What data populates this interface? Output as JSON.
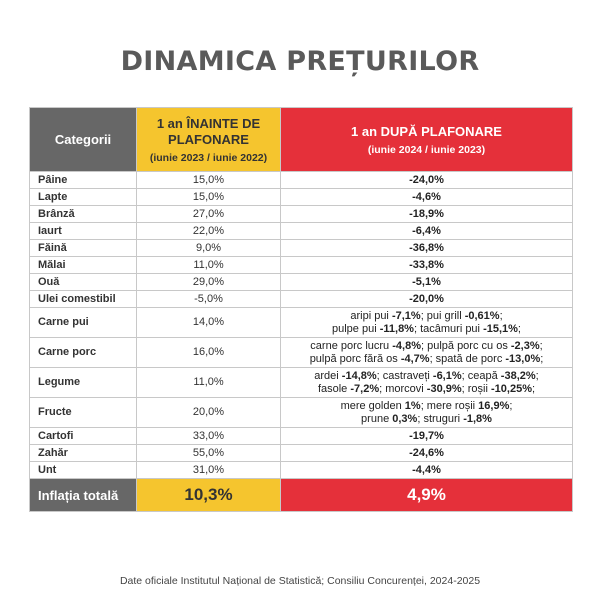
{
  "title": "DINAMICA PREȚURILOR",
  "header": {
    "category": "Categorii",
    "before_title": "1 an ÎNAINTE DE PLAFONARE",
    "before_period": "(iunie 2023 / iunie 2022)",
    "after_title": "1 an DUPĂ PLAFONARE",
    "after_period": "(iunie 2024 / iunie 2023)"
  },
  "rows": [
    {
      "category": "Pâine",
      "before": "15,0%",
      "after": [
        {
          "t": "-24,0%",
          "b": true
        }
      ]
    },
    {
      "category": "Lapte",
      "before": "15,0%",
      "after": [
        {
          "t": "-4,6%",
          "b": true
        }
      ]
    },
    {
      "category": "Brânză",
      "before": "27,0%",
      "after": [
        {
          "t": "-18,9%",
          "b": true
        }
      ]
    },
    {
      "category": "Iaurt",
      "before": "22,0%",
      "after": [
        {
          "t": "-6,4%",
          "b": true
        }
      ]
    },
    {
      "category": "Făină",
      "before": "9,0%",
      "after": [
        {
          "t": "-36,8%",
          "b": true
        }
      ]
    },
    {
      "category": "Mălai",
      "before": "11,0%",
      "after": [
        {
          "t": "-33,8%",
          "b": true
        }
      ]
    },
    {
      "category": "Ouă",
      "before": "29,0%",
      "after": [
        {
          "t": "-5,1%",
          "b": true
        }
      ]
    },
    {
      "category": "Ulei comestibil",
      "before": "-5,0%",
      "after": [
        {
          "t": "-20,0%",
          "b": true
        }
      ]
    },
    {
      "category": "Carne pui",
      "before": "14,0%",
      "after": [
        {
          "t": "aripi pui ",
          "b": false
        },
        {
          "t": "-7,1%",
          "b": true
        },
        {
          "t": "; pui grill ",
          "b": false
        },
        {
          "t": "-0,61%",
          "b": true
        },
        {
          "t": ";",
          "b": false
        },
        {
          "br": true
        },
        {
          "t": "pulpe pui ",
          "b": false
        },
        {
          "t": "-11,8%",
          "b": true
        },
        {
          "t": "; tacâmuri pui ",
          "b": false
        },
        {
          "t": "-15,1%",
          "b": true
        },
        {
          "t": ";",
          "b": false
        }
      ]
    },
    {
      "category": "Carne porc",
      "before": "16,0%",
      "after": [
        {
          "t": "carne porc lucru ",
          "b": false
        },
        {
          "t": "-4,8%",
          "b": true
        },
        {
          "t": "; pulpă porc cu os ",
          "b": false
        },
        {
          "t": "-2,3%",
          "b": true
        },
        {
          "t": ";",
          "b": false
        },
        {
          "br": true
        },
        {
          "t": "pulpă porc fără os ",
          "b": false
        },
        {
          "t": "-4,7%",
          "b": true
        },
        {
          "t": "; spată de porc ",
          "b": false
        },
        {
          "t": "-13,0%",
          "b": true
        },
        {
          "t": ";",
          "b": false
        }
      ]
    },
    {
      "category": "Legume",
      "before": "11,0%",
      "after": [
        {
          "t": "ardei ",
          "b": false
        },
        {
          "t": "-14,8%",
          "b": true
        },
        {
          "t": "; castraveți ",
          "b": false
        },
        {
          "t": "-6,1%",
          "b": true
        },
        {
          "t": "; ceapă ",
          "b": false
        },
        {
          "t": "-38,2%",
          "b": true
        },
        {
          "t": ";",
          "b": false
        },
        {
          "br": true
        },
        {
          "t": "fasole ",
          "b": false
        },
        {
          "t": "-7,2%",
          "b": true
        },
        {
          "t": "; morcovi ",
          "b": false
        },
        {
          "t": "-30,9%",
          "b": true
        },
        {
          "t": "; roșii ",
          "b": false
        },
        {
          "t": "-10,25%",
          "b": true
        },
        {
          "t": ";",
          "b": false
        }
      ]
    },
    {
      "category": "Fructe",
      "before": "20,0%",
      "after": [
        {
          "t": "mere golden ",
          "b": false
        },
        {
          "t": "1%",
          "b": true
        },
        {
          "t": "; mere roșii ",
          "b": false
        },
        {
          "t": "16,9%",
          "b": true
        },
        {
          "t": ";",
          "b": false
        },
        {
          "br": true
        },
        {
          "t": "prune ",
          "b": false
        },
        {
          "t": "0,3%",
          "b": true
        },
        {
          "t": "; struguri ",
          "b": false
        },
        {
          "t": "-1,8%",
          "b": true
        }
      ]
    },
    {
      "category": "Cartofi",
      "before": "33,0%",
      "after": [
        {
          "t": "-19,7%",
          "b": true
        }
      ]
    },
    {
      "category": "Zahăr",
      "before": "55,0%",
      "after": [
        {
          "t": "-24,6%",
          "b": true
        }
      ]
    },
    {
      "category": "Unt",
      "before": "31,0%",
      "after": [
        {
          "t": "-4,4%",
          "b": true
        }
      ]
    }
  ],
  "total": {
    "label": "Inflația totală",
    "before": "10,3%",
    "after": "4,9%"
  },
  "source": "Date oficiale Institutul Național de Statistică; Consiliu Concurenței, 2024-2025",
  "colors": {
    "title": "#5a5a5a",
    "category_header": "#676767",
    "before_accent": "#f5c52e",
    "after_accent": "#e5303a"
  }
}
